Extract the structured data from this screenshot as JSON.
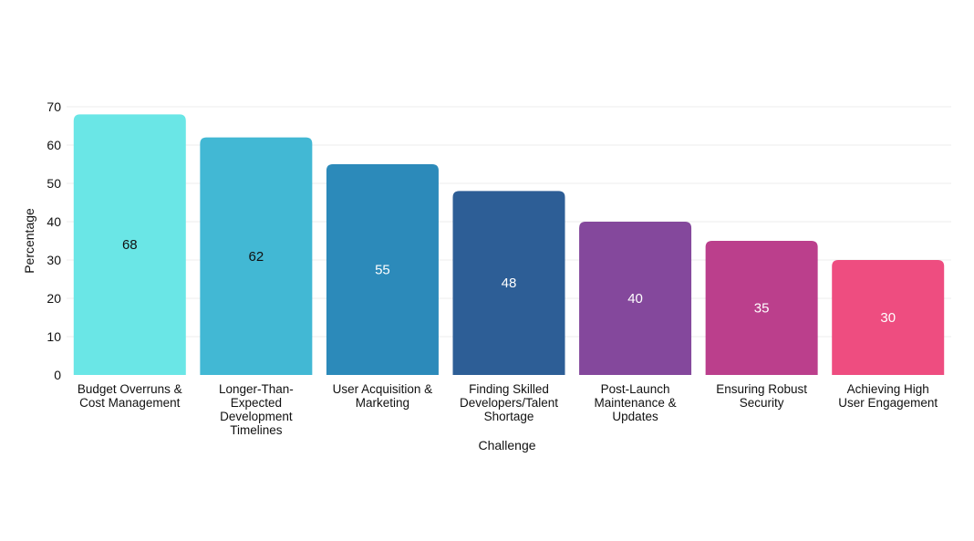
{
  "chart_data": {
    "type": "bar",
    "title": "",
    "xlabel": "Challenge",
    "ylabel": "Percentage",
    "ylim": [
      0,
      70
    ],
    "yticks": [
      0,
      10,
      20,
      30,
      40,
      50,
      60,
      70
    ],
    "grid": true,
    "categories": [
      [
        "Budget Overruns &",
        "Cost Management"
      ],
      [
        "Longer-Than-",
        "Expected",
        "Development",
        "Timelines"
      ],
      [
        "User Acquisition &",
        "Marketing"
      ],
      [
        "Finding Skilled",
        "Developers/Talent",
        "Shortage"
      ],
      [
        "Post-Launch",
        "Maintenance &",
        "Updates"
      ],
      [
        "Ensuring Robust",
        "Security"
      ],
      [
        "Achieving High",
        "User Engagement"
      ]
    ],
    "values": [
      68,
      62,
      55,
      48,
      40,
      35,
      30
    ],
    "colors": [
      "#6ae6e6",
      "#42b8d4",
      "#2c8aba",
      "#2d5e96",
      "#84489c",
      "#bb3f8c",
      "#ee4d80"
    ],
    "label_colors": [
      "#111111",
      "#111111",
      "#ffffff",
      "#ffffff",
      "#ffffff",
      "#ffffff",
      "#ffffff"
    ]
  }
}
